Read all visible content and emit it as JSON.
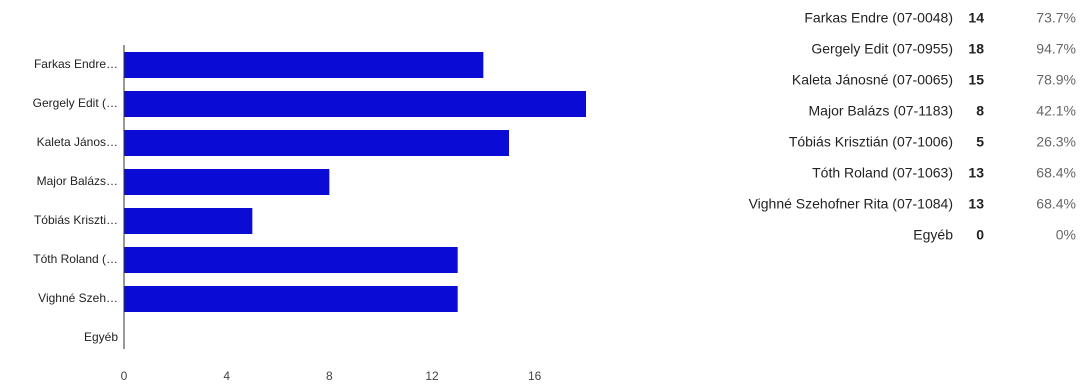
{
  "chart_data": {
    "type": "hbar",
    "categories": [
      "Farkas Endre…",
      "Gergely Edit (…",
      "Kaleta János…",
      "Major Balázs…",
      "Tóbiás Kriszti…",
      "Tóth Roland (…",
      "Vighné Szeh…",
      "Egyéb"
    ],
    "values": [
      14,
      18,
      15,
      8,
      5,
      13,
      13,
      0
    ],
    "color": "#0b0bd6",
    "xlim": [
      0,
      18
    ],
    "xticks": [
      0,
      4,
      8,
      12,
      16
    ]
  },
  "table": {
    "rows": [
      [
        "Farkas Endre (07-0048)",
        "14",
        "73.7%"
      ],
      [
        "Gergely Edit (07-0955)",
        "18",
        "94.7%"
      ],
      [
        "Kaleta Jánosné (07-0065)",
        "15",
        "78.9%"
      ],
      [
        "Major Balázs (07-1183)",
        "8",
        "42.1%"
      ],
      [
        "Tóbiás Krisztián (07-1006)",
        "5",
        "26.3%"
      ],
      [
        "Tóth Roland (07-1063)",
        "13",
        "68.4%"
      ],
      [
        "Vighné Szehofner Rita (07-1084)",
        "13",
        "68.4%"
      ],
      [
        "Egyéb",
        "0",
        "0%"
      ]
    ]
  }
}
